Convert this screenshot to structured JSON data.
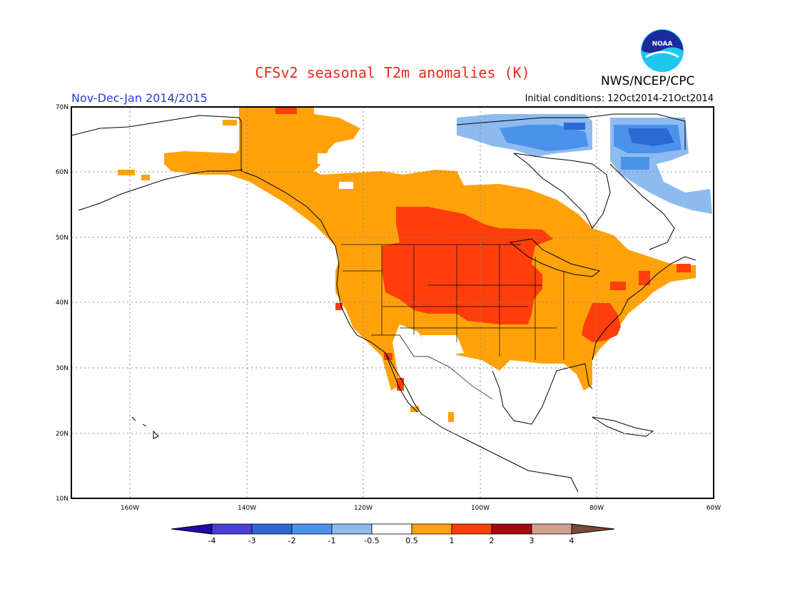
{
  "header": {
    "title": "CFSv2 seasonal T2m anomalies (K)",
    "agency": "NWS/NCEP/CPC",
    "logo_text": "NOAA",
    "period": "Nov-Dec-Jan 2014/2015",
    "initial_conditions": "Initial conditions: 12Oct2014-21Oct2014"
  },
  "map": {
    "lon_range": [
      -172,
      -60
    ],
    "lat_range": [
      10,
      70
    ],
    "lat_labels": [
      "10N",
      "20N",
      "30N",
      "40N",
      "50N",
      "60N",
      "70N"
    ],
    "lon_labels": [
      "160W",
      "140W",
      "120W",
      "100W",
      "80W",
      "60W"
    ]
  },
  "colorbar": {
    "ticks": [
      "-4",
      "-3",
      "-2",
      "-1",
      "-0.5",
      "0.5",
      "1",
      "2",
      "3",
      "4"
    ],
    "colors": [
      "#1f0aa8",
      "#4a3fd6",
      "#2a6ad2",
      "#4b93ea",
      "#8dbbf0",
      "#ffffff",
      "#ffa20a",
      "#ff3e0c",
      "#a80a10",
      "#cfa190",
      "#7a4a34"
    ]
  },
  "colors": {
    "weak_warm": "#ffa20a",
    "moderate_warm": "#ff3e0c",
    "weak_cold": "#8dbbf0",
    "moderate_cold": "#4b93ea",
    "strong_cold": "#2a6ad2",
    "title_red": "#e8291b",
    "period_blue": "#2b3ccf"
  }
}
